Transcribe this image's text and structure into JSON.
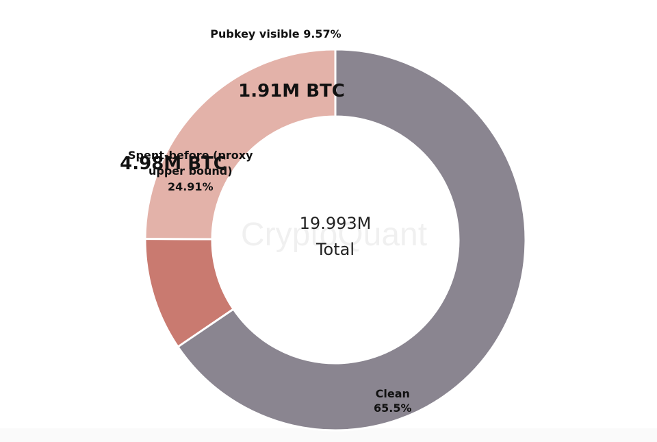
{
  "chart_data": {
    "type": "pie",
    "variant": "donut",
    "categories": [
      "Clean",
      "Pubkey visible",
      "Spent-before (proxy upper bound)"
    ],
    "values": [
      65.5,
      9.57,
      24.91
    ],
    "unit": "%",
    "colors": [
      "#8a8590",
      "#c97a70",
      "#e3b2a9"
    ],
    "slice_labels": [
      {
        "lines": [
          "Clean",
          "65.5%"
        ]
      },
      {
        "lines": [
          "Pubkey visible 9.57%"
        ]
      },
      {
        "lines": [
          "Spent-before (proxy",
          "upper bound)",
          "24.91%"
        ]
      }
    ],
    "annotations": [
      "1.91M BTC",
      "4.98M BTC"
    ],
    "center": {
      "value": "19.993M",
      "label": "Total"
    },
    "watermark": "CryptoQuant",
    "legend": "none"
  }
}
